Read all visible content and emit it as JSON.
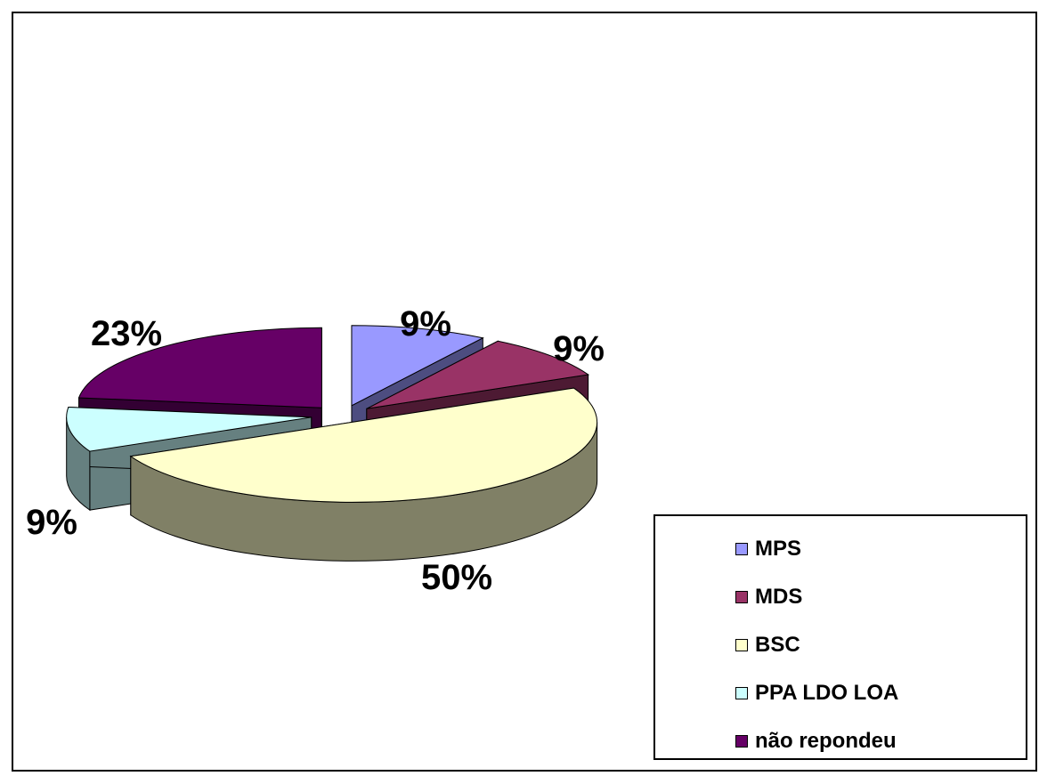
{
  "chart_data": {
    "type": "pie",
    "three_d": true,
    "legend_position": "bottom-right",
    "slices": [
      {
        "label": "MPS",
        "value": 9,
        "value_label": "9%",
        "color": "#9999FF",
        "side_color": "#4D4D80"
      },
      {
        "label": "MDS",
        "value": 9,
        "value_label": "9%",
        "color": "#993366",
        "side_color": "#4D1A33"
      },
      {
        "label": "BSC",
        "value": 50,
        "value_label": "50%",
        "color": "#FFFFCC",
        "side_color": "#808066"
      },
      {
        "label": "PPA LDO LOA",
        "value": 9,
        "value_label": "9%",
        "color": "#CCFFFF",
        "side_color": "#668080"
      },
      {
        "label": "não repondeu",
        "value": 23,
        "value_label": "23%",
        "color": "#660066",
        "side_color": "#330033"
      }
    ]
  }
}
